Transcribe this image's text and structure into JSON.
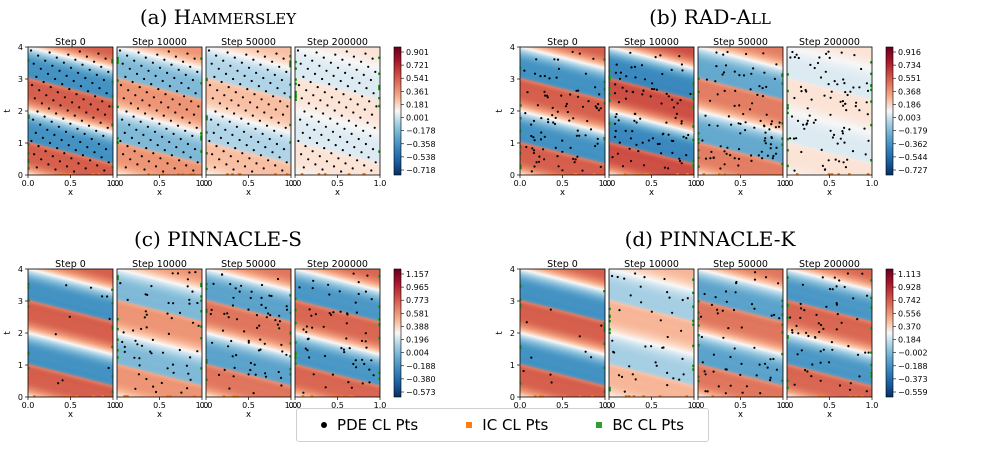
{
  "chart_data": [
    {
      "type": "heatmap",
      "title": "(a) Hammersley",
      "title_parts": {
        "label": "(a)",
        "initial": "H",
        "rest": "ammersley"
      },
      "subplots": [
        "Step 0",
        "Step 10000",
        "Step 50000",
        "Step 200000"
      ],
      "xlabel": "x",
      "ylabel": "t",
      "xticks": [
        "0.0",
        "0.5",
        "1.0"
      ],
      "yticks": [
        "0",
        "1",
        "2",
        "3",
        "4"
      ],
      "xlim": [
        0,
        1
      ],
      "ylim": [
        0,
        4
      ],
      "colorbar_ticks": [
        "0.901",
        "0.721",
        "0.541",
        "0.361",
        "0.181",
        "0.001",
        "−0.178",
        "−0.358",
        "−0.538",
        "−0.718"
      ],
      "colorbar_range": [
        -0.718,
        0.901
      ],
      "amplitudes": [
        0.9,
        0.55,
        0.3,
        0.1
      ],
      "point_counts": [
        120,
        120,
        120,
        120
      ]
    },
    {
      "type": "heatmap",
      "title": "(b) RAD-All",
      "title_parts": {
        "label": "(b)",
        "initial": "RAD-A",
        "rest": "ll"
      },
      "subplots": [
        "Step 0",
        "Step 10000",
        "Step 50000",
        "Step 200000"
      ],
      "xlabel": "x",
      "ylabel": "t",
      "xticks": [
        "0.0",
        "0.5",
        "1.0"
      ],
      "yticks": [
        "0",
        "1",
        "2",
        "3",
        "4"
      ],
      "xlim": [
        0,
        1
      ],
      "ylim": [
        0,
        4
      ],
      "colorbar_ticks": [
        "0.916",
        "0.734",
        "0.551",
        "0.368",
        "0.186",
        "0.003",
        "−0.179",
        "−0.362",
        "−0.544",
        "−0.727"
      ],
      "colorbar_range": [
        -0.727,
        0.916
      ],
      "amplitudes": [
        0.9,
        1.0,
        0.7,
        0.1
      ],
      "point_counts": [
        90,
        90,
        90,
        90
      ]
    },
    {
      "type": "heatmap",
      "title": "(c) PINNACLE-S",
      "title_parts": {
        "label": "(c)",
        "initial": "PINNACLE-S",
        "rest": ""
      },
      "subplots": [
        "Step 0",
        "Step 10000",
        "Step 50000",
        "Step 200000"
      ],
      "xlabel": "x",
      "ylabel": "t",
      "xticks": [
        "0.0",
        "0.5",
        "1.0"
      ],
      "yticks": [
        "0",
        "1",
        "2",
        "3",
        "4"
      ],
      "xlim": [
        0,
        1
      ],
      "ylim": [
        0,
        4
      ],
      "colorbar_ticks": [
        "1.157",
        "0.965",
        "0.773",
        "0.581",
        "0.388",
        "0.196",
        "0.004",
        "−0.188",
        "−0.380",
        "−0.573"
      ],
      "colorbar_range": [
        -0.573,
        1.157
      ],
      "amplitudes": [
        0.9,
        0.55,
        0.75,
        0.85
      ],
      "point_counts": [
        10,
        60,
        70,
        60
      ]
    },
    {
      "type": "heatmap",
      "title": "(d) PINNACLE-K",
      "title_parts": {
        "label": "(d)",
        "initial": "PINNACLE-K",
        "rest": ""
      },
      "subplots": [
        "Step 0",
        "Step 10000",
        "Step 50000",
        "Step 200000"
      ],
      "xlabel": "x",
      "ylabel": "t",
      "xticks": [
        "0.0",
        "0.5",
        "1.0"
      ],
      "yticks": [
        "0",
        "1",
        "2",
        "3",
        "4"
      ],
      "xlim": [
        0,
        1
      ],
      "ylim": [
        0,
        4
      ],
      "colorbar_ticks": [
        "1.113",
        "0.928",
        "0.742",
        "0.556",
        "0.370",
        "0.184",
        "−0.002",
        "−0.188",
        "−0.373",
        "−0.559"
      ],
      "colorbar_range": [
        -0.559,
        1.113
      ],
      "amplitudes": [
        0.9,
        0.35,
        0.75,
        0.85
      ],
      "point_counts": [
        10,
        40,
        55,
        60
      ]
    }
  ],
  "legend": [
    {
      "label": "PDE CL Pts",
      "marker": "dot",
      "color": "#000000"
    },
    {
      "label": "IC CL Pts",
      "marker": "square",
      "color": "#ff7f0e"
    },
    {
      "label": "BC CL Pts",
      "marker": "square",
      "color": "#2ca02c"
    }
  ],
  "colors": {
    "red": "#67001f",
    "blue": "#053061",
    "ic": "#ff7f0e",
    "bc": "#2ca02c"
  }
}
